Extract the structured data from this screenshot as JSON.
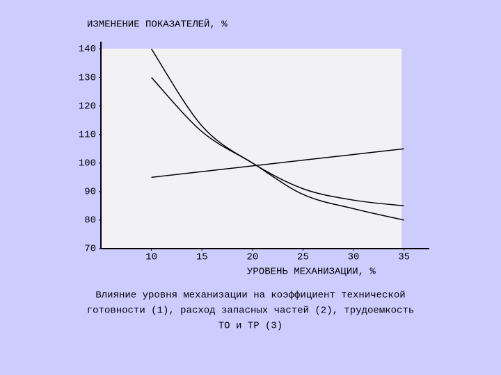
{
  "chart_data": {
    "type": "line",
    "title": "ИЗМЕНЕНИЕ ПОКАЗАТЕЛЕЙ, %",
    "x_label": "УРОВЕНЬ МЕХАНИЗАЦИИ, %",
    "caption": [
      "Влияние уровня механизации на коэффициент технической",
      "готовности (1), расход запасных частей (2), трудоемкость",
      "ТО и ТР (3)"
    ],
    "x": [
      10,
      15,
      20,
      25,
      30,
      35
    ],
    "series": [
      {
        "color": "#000000",
        "values": [
          95,
          97,
          99,
          101,
          103,
          105
        ]
      },
      {
        "color": "#000000",
        "values": [
          140,
          113,
          100,
          91,
          87,
          85
        ]
      },
      {
        "color": "#000000",
        "values": [
          130,
          111,
          100,
          89,
          84,
          80
        ]
      }
    ],
    "xlim": [
      5,
      37.5
    ],
    "xticks": [
      10,
      15,
      20,
      25,
      30,
      35
    ],
    "ylim": [
      70,
      140
    ],
    "yticks": [
      70,
      80,
      90,
      100,
      110,
      120,
      130,
      140
    ]
  }
}
